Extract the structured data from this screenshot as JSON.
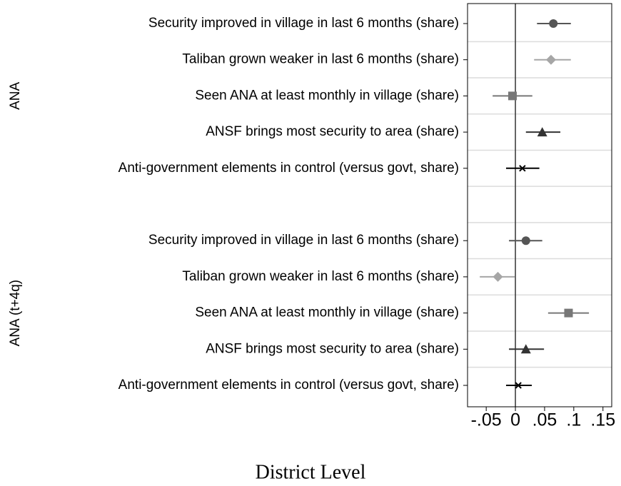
{
  "chart_data": {
    "type": "coefplot",
    "title": "District Level",
    "groups": [
      {
        "name": "ANA",
        "categories": [
          "Security improved in village in last 6 months (share)",
          "Taliban grown weaker in last 6 months (share)",
          "Seen ANA at least monthly in village (share)",
          "ANSF brings most security to area (share)",
          "Anti-government elements in control (versus govt, share)"
        ],
        "values": [
          0.065,
          0.061,
          -0.005,
          0.046,
          0.012
        ],
        "lower": [
          0.037,
          0.032,
          -0.039,
          0.018,
          -0.016
        ],
        "upper": [
          0.095,
          0.095,
          0.029,
          0.077,
          0.041
        ]
      },
      {
        "name": "ANA (t+4q)",
        "categories": [
          "Security improved in village in last 6 months (share)",
          "Taliban grown weaker in last 6 months (share)",
          "Seen ANA at least monthly in village (share)",
          "ANSF brings most security to area (share)",
          "Anti-government elements in control (versus govt, share)"
        ],
        "values": [
          0.018,
          -0.03,
          0.091,
          0.018,
          0.005
        ],
        "lower": [
          -0.011,
          -0.061,
          0.056,
          -0.011,
          -0.016
        ],
        "upper": [
          0.046,
          -0.001,
          0.126,
          0.049,
          0.028
        ]
      }
    ],
    "markers": [
      "circle",
      "diamond",
      "square",
      "triangle",
      "x"
    ],
    "colors": [
      "#555555",
      "#a6a6a6",
      "#777777",
      "#333333",
      "#000000"
    ],
    "xlim": [
      -0.082,
      0.165
    ],
    "xticks": [
      {
        "value": -0.05,
        "label": "-.05"
      },
      0,
      {
        "value": 0.05,
        "label": ".05"
      },
      {
        "value": 0.1,
        "label": ".1"
      },
      {
        "value": 0.15,
        "label": ".15"
      }
    ],
    "grid": true
  }
}
